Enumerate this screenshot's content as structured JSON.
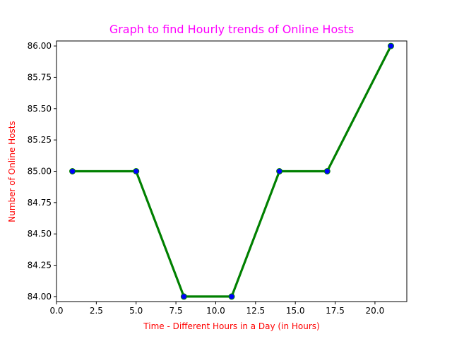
{
  "chart_data": {
    "type": "line",
    "title": "Graph to find Hourly trends of Online Hosts",
    "xlabel": "Time - Different Hours in a Day (in Hours)",
    "ylabel": "Number of Online Hosts",
    "x": [
      1,
      5,
      8,
      11,
      14,
      17,
      21
    ],
    "series": [
      {
        "values": [
          85,
          85,
          84,
          84,
          85,
          85,
          86
        ]
      }
    ],
    "xlim": [
      0,
      22
    ],
    "ylim": [
      83.96,
      86.04
    ],
    "xticks": [
      "0.0",
      "2.5",
      "5.0",
      "7.5",
      "10.0",
      "12.5",
      "15.0",
      "17.5",
      "20.0"
    ],
    "yticks": [
      "84.00",
      "84.25",
      "84.50",
      "84.75",
      "85.00",
      "85.25",
      "85.50",
      "85.75",
      "86.00"
    ],
    "grid": false,
    "colors": {
      "title": "#ff00ff",
      "axis_labels": "#ff0000",
      "line": "#008000",
      "marker_face": "#0000ff",
      "marker_edge": "#008000"
    }
  }
}
